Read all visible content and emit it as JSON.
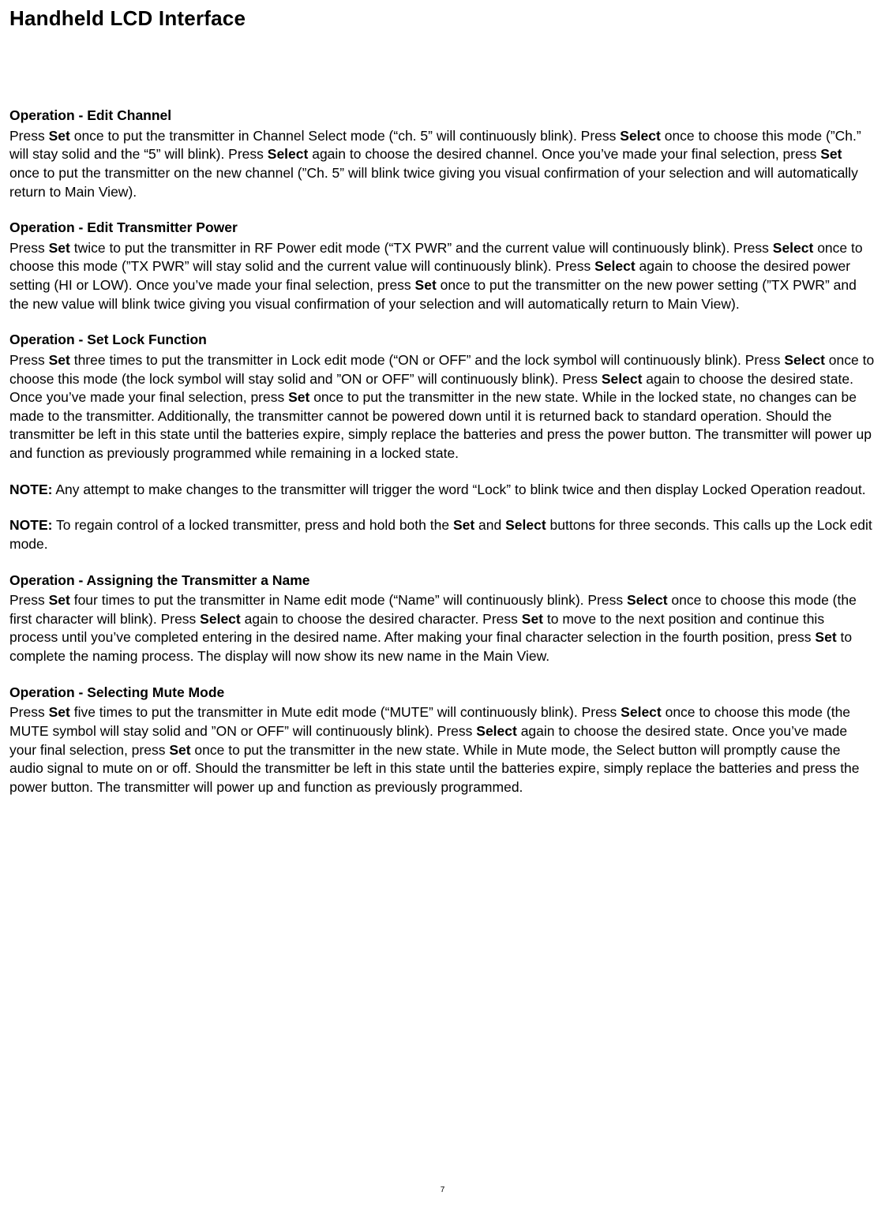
{
  "title": "Handheld LCD Interface",
  "page_number": "7",
  "typography": {
    "title_fontsize_pt": 20,
    "heading_fontsize_pt": 13,
    "body_fontsize_pt": 13,
    "line_height": 1.35,
    "font_family": "Arial",
    "text_color": "#000000",
    "background_color": "#ffffff"
  },
  "sections": [
    {
      "heading": "Operation - Edit Channel",
      "runs": [
        {
          "t": "Press "
        },
        {
          "t": "Set",
          "b": true
        },
        {
          "t": " once to put the transmitter in Channel Select mode (“ch. 5”  will continuously blink).  Press "
        },
        {
          "t": "Select",
          "b": true
        },
        {
          "t": " once to choose this mode (”Ch.” will stay solid and the “5” will blink).  Press "
        },
        {
          "t": "Select",
          "b": true
        },
        {
          "t": " again to choose the desired channel. Once you’ve made your final selection, press "
        },
        {
          "t": "Set",
          "b": true
        },
        {
          "t": " once to put the transmitter on the new channel (”Ch. 5” will blink twice giving you visual confirmation of your selection and will automatically return to Main View)."
        }
      ]
    },
    {
      "heading": "Operation - Edit Transmitter Power",
      "runs": [
        {
          "t": "Press "
        },
        {
          "t": "Set",
          "b": true
        },
        {
          "t": " twice to put the transmitter in RF Power edit mode (“TX PWR”  and the current value will continuously blink).  Press "
        },
        {
          "t": "Select",
          "b": true
        },
        {
          "t": " once to choose this mode (”TX PWR” will stay solid and the current value will continuously blink).  Press "
        },
        {
          "t": "Select",
          "b": true
        },
        {
          "t": " again to choose the desired power setting (HI or LOW). Once you’ve made your final selection, press "
        },
        {
          "t": "Set",
          "b": true
        },
        {
          "t": " once to put the transmitter on the new power setting (”TX PWR” and the new value will blink twice giving you visual confirmation of your selection and will automatically return to Main View)."
        }
      ]
    },
    {
      "heading": "Operation - Set Lock Function",
      "runs": [
        {
          "t": "Press "
        },
        {
          "t": "Set",
          "b": true
        },
        {
          "t": " three times to put the transmitter in Lock edit mode (“ON or OFF”  and the lock symbol will continuously blink).  Press "
        },
        {
          "t": "Select",
          "b": true
        },
        {
          "t": " once to choose this mode (the lock symbol will stay solid and ”ON or OFF” will continuously blink).  Press "
        },
        {
          "t": "Select",
          "b": true
        },
        {
          "t": " again to choose the desired state. Once you’ve made your final selection, press "
        },
        {
          "t": "Set",
          "b": true
        },
        {
          "t": " once to put the transmitter in the new state.  While in the locked state, no changes can be made to the transmitter. Additionally, the transmitter cannot be powered down until it is returned back to standard operation.  Should the transmitter be left in this state until the batteries expire, simply replace the batteries and press the power button.  The transmitter will power up and function as previously programmed while remaining in a locked state."
        }
      ],
      "notes": [
        [
          {
            "t": "NOTE:",
            "b": true
          },
          {
            "t": " Any attempt to make changes to the transmitter will trigger the word “Lock” to blink twice and then display Locked Operation readout."
          }
        ],
        [
          {
            "t": "NOTE:",
            "b": true
          },
          {
            "t": " To regain control of a locked transmitter, press and hold both the "
          },
          {
            "t": "Set",
            "b": true
          },
          {
            "t": " and "
          },
          {
            "t": "Select",
            "b": true
          },
          {
            "t": " buttons for three seconds. This calls up the Lock edit mode."
          }
        ]
      ]
    },
    {
      "heading": "Operation - Assigning the Transmitter a Name",
      "runs": [
        {
          "t": "Press "
        },
        {
          "t": "Set",
          "b": true
        },
        {
          "t": " four times to put the transmitter in Name edit mode (“Name” will continuously blink).  Press "
        },
        {
          "t": "Select",
          "b": true
        },
        {
          "t": " once to choose this mode (the first character will blink).  Press "
        },
        {
          "t": "Select",
          "b": true
        },
        {
          "t": " again to choose the desired character.  Press "
        },
        {
          "t": "Set",
          "b": true
        },
        {
          "t": " to move to the next position and continue this process until you’ve completed entering in the desired name.  After making your final character selection in the fourth position, press "
        },
        {
          "t": "Set",
          "b": true
        },
        {
          "t": " to complete the naming process.  The display will now show its new name in the Main View."
        }
      ]
    },
    {
      "heading": "Operation - Selecting Mute Mode",
      "runs": [
        {
          "t": "Press "
        },
        {
          "t": "Set",
          "b": true
        },
        {
          "t": " five times to put the transmitter in Mute edit mode (“MUTE” will continuously blink).  Press "
        },
        {
          "t": "Select",
          "b": true
        },
        {
          "t": " once to choose this mode (the MUTE symbol will stay solid and ”ON or OFF” will continuously blink).  Press "
        },
        {
          "t": "Select",
          "b": true
        },
        {
          "t": " again to choose the desired state. Once you’ve made your final selection, press "
        },
        {
          "t": "Set",
          "b": true
        },
        {
          "t": " once to put the transmitter in the new state.  While in Mute mode, the Select button will promptly cause the audio signal to mute on or off.  Should the transmitter be left in this state until the batteries expire, simply replace the batteries and press the power button.  The transmitter will power up and function as previously programmed."
        }
      ]
    }
  ]
}
